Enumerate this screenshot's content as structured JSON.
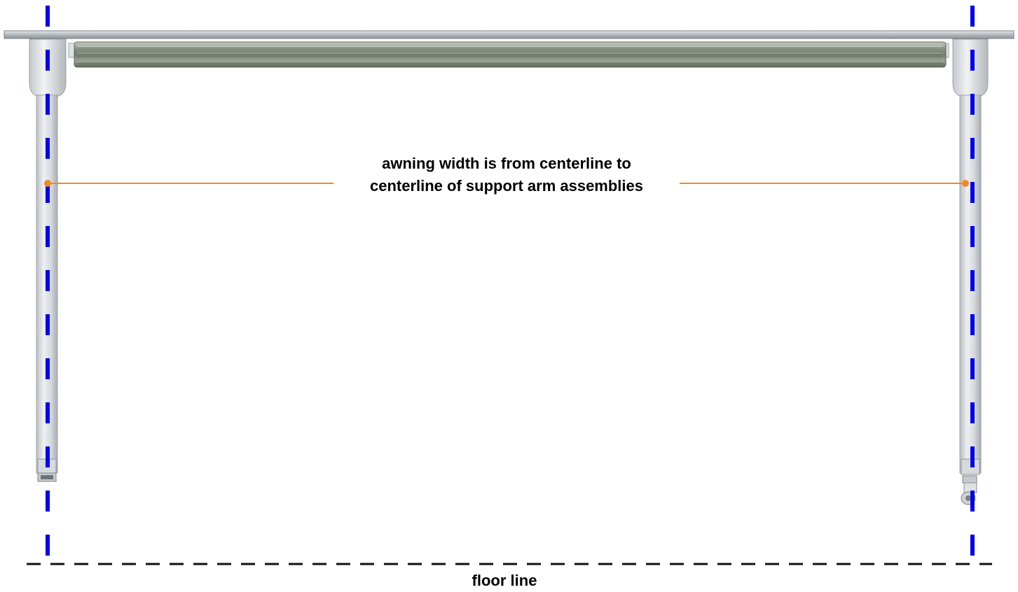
{
  "annotation": {
    "line1": "awning width is from centerline to",
    "line2": "centerline of support arm assemblies"
  },
  "floor_label": "floor line",
  "colors": {
    "centerline": "#0000ee",
    "dimension_line": "#f08a24",
    "floor_line": "#111111",
    "frame": "#c9ced3",
    "roller": "#8c9688"
  }
}
